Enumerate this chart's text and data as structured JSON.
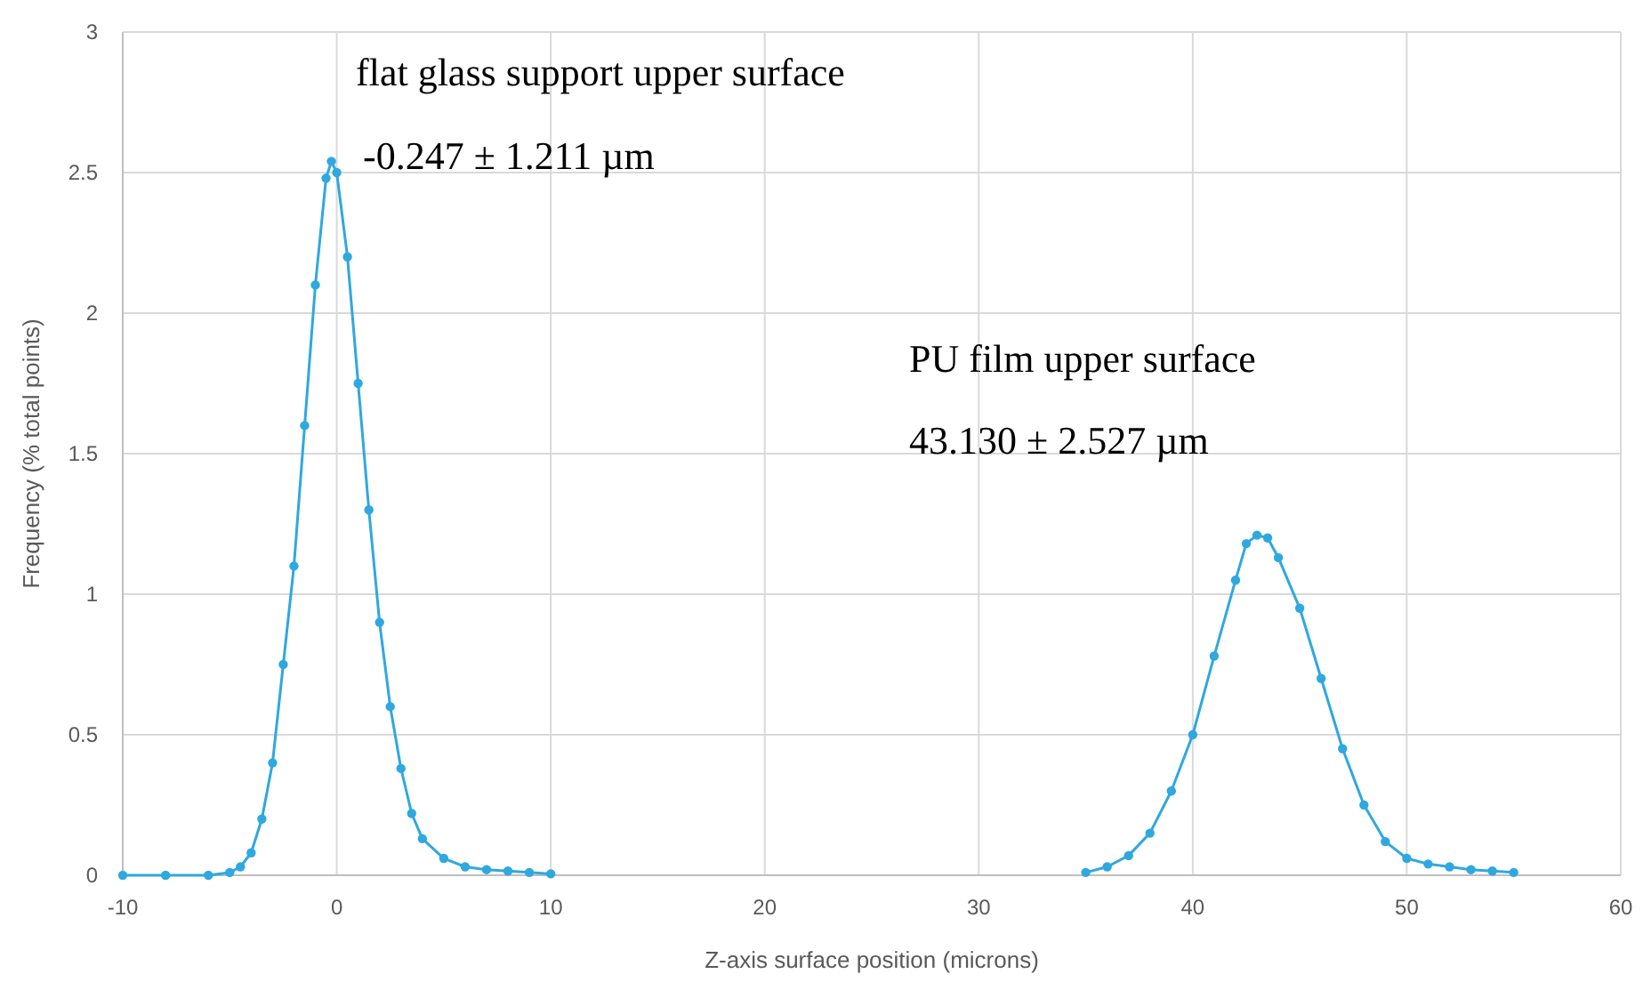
{
  "chart_data": {
    "type": "line",
    "xlabel": "Z-axis surface position (microns)",
    "ylabel": "Frequency  (% total points)",
    "xlim": [
      -10,
      60
    ],
    "xticks": [
      -10,
      0,
      10,
      20,
      30,
      40,
      50,
      60
    ],
    "ylim": [
      0,
      3
    ],
    "yticks": [
      0,
      0.5,
      1,
      1.5,
      2,
      2.5,
      3
    ],
    "grid": true,
    "marker": "circle",
    "line_style": "solid",
    "series": [
      {
        "color": "#2fa8e0",
        "x": [
          -10,
          -8,
          -6,
          -5,
          -4.5,
          -4,
          -3.5,
          -3,
          -2.5,
          -2,
          -1.5,
          -1,
          -0.5,
          -0.25,
          0,
          0.5,
          1,
          1.5,
          2,
          2.5,
          3,
          3.5,
          4,
          5,
          6,
          7,
          8,
          9,
          10
        ],
        "values": [
          0,
          0,
          0,
          0.01,
          0.03,
          0.08,
          0.2,
          0.4,
          0.75,
          1.1,
          1.6,
          2.1,
          2.48,
          2.54,
          2.5,
          2.2,
          1.75,
          1.3,
          0.9,
          0.6,
          0.38,
          0.22,
          0.13,
          0.06,
          0.03,
          0.02,
          0.015,
          0.01,
          0.005
        ]
      },
      {
        "color": "#2fa8e0",
        "x": [
          35,
          36,
          37,
          38,
          39,
          40,
          41,
          42,
          42.5,
          43,
          43.5,
          44,
          45,
          46,
          47,
          48,
          49,
          50,
          51,
          52,
          53,
          54,
          55
        ],
        "values": [
          0.01,
          0.03,
          0.07,
          0.15,
          0.3,
          0.5,
          0.78,
          1.05,
          1.18,
          1.21,
          1.2,
          1.13,
          0.95,
          0.7,
          0.45,
          0.25,
          0.12,
          0.06,
          0.04,
          0.03,
          0.02,
          0.015,
          0.01
        ]
      }
    ],
    "annotations": [
      "flat glass support upper surface",
      "-0.247 ± 1.211 µm",
      "PU film upper surface",
      "43.130 ± 2.527 µm"
    ]
  }
}
